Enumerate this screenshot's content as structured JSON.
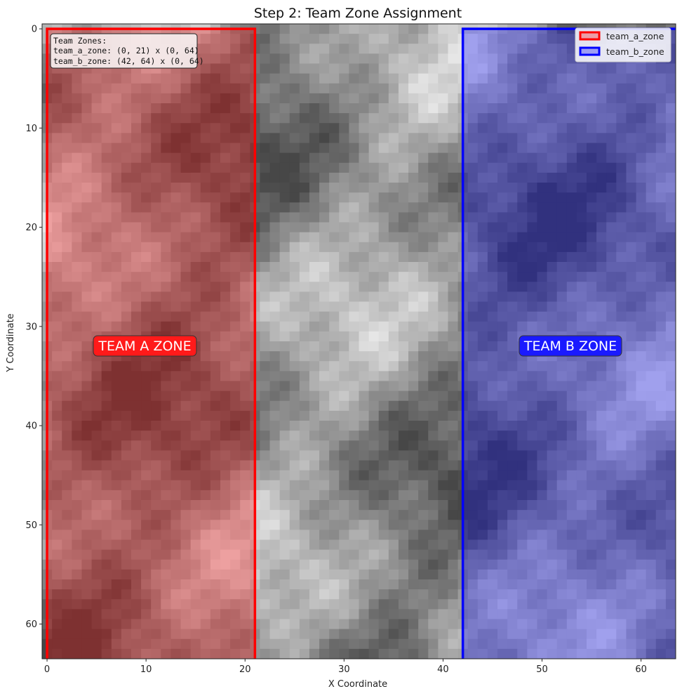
{
  "chart_data": {
    "type": "heatmap",
    "title": "Step 2: Team Zone Assignment",
    "xlabel": "X Coordinate",
    "ylabel": "Y Coordinate",
    "xlim": [
      -0.5,
      63.5
    ],
    "ylim": [
      63.5,
      -0.5
    ],
    "grid_size": [
      64,
      64
    ],
    "x_ticks": [
      0,
      10,
      20,
      30,
      40,
      50,
      60
    ],
    "y_ticks": [
      0,
      10,
      20,
      30,
      40,
      50,
      60
    ],
    "colormap": "gray",
    "grid": false,
    "legend_position": "upper right",
    "legend": [
      {
        "label": "team_a_zone",
        "color": "#ff0000"
      },
      {
        "label": "team_b_zone",
        "color": "#0000ff"
      }
    ],
    "zones": [
      {
        "name": "team_a_zone",
        "x_range": [
          0,
          21
        ],
        "y_range": [
          0,
          64
        ],
        "edge_color": "#ff0000",
        "fill_color": "#ff0000",
        "label": "TEAM A ZONE"
      },
      {
        "name": "team_b_zone",
        "x_range": [
          42,
          64
        ],
        "y_range": [
          0,
          64
        ],
        "edge_color": "#0000ff",
        "fill_color": "#0000ff",
        "label": "TEAM B ZONE"
      }
    ],
    "info_box": {
      "lines": [
        "Team Zones:",
        "team_a_zone: (0, 21) x (0, 64)",
        "team_b_zone: (42, 64) x (0, 64)"
      ]
    },
    "zone_labels": [
      {
        "text": "TEAM A ZONE",
        "x": 10,
        "y": 32,
        "bg": "#ff1a1a"
      },
      {
        "text": "TEAM B ZONE",
        "x": 53,
        "y": 32,
        "bg": "#1a1aff"
      }
    ]
  }
}
